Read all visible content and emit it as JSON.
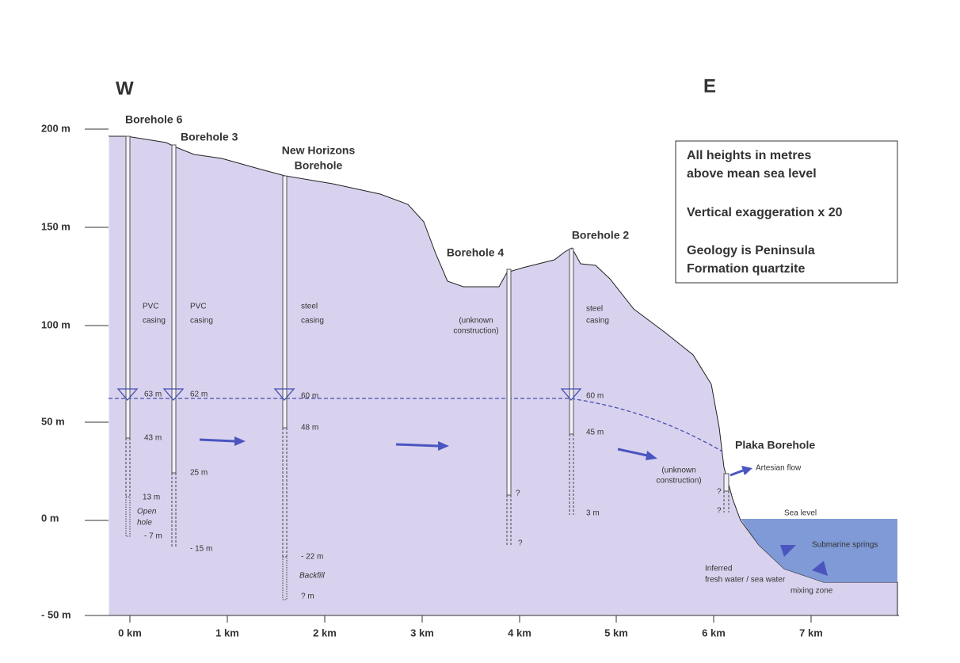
{
  "directions": {
    "west": "W",
    "east": "E"
  },
  "y_axis": {
    "ticks": [
      "200 m",
      "150 m",
      "100 m",
      "50 m",
      "0 m",
      "- 50 m"
    ]
  },
  "x_axis": {
    "ticks": [
      "0 km",
      "1 km",
      "2 km",
      "3 km",
      "4 km",
      "5 km",
      "6 km",
      "7 km"
    ]
  },
  "note": {
    "lines": [
      "All heights in metres",
      "above mean sea level",
      "Vertical exaggeration x 20",
      "Geology is Peninsula",
      "Formation quartzite"
    ]
  },
  "boreholes": [
    {
      "name": [
        "Borehole 6"
      ],
      "construction": [
        "PVC",
        "casing"
      ],
      "labels": [
        "63 m",
        "43 m",
        "13 m",
        "- 7 m"
      ],
      "section": [
        "Open",
        "hole"
      ]
    },
    {
      "name": [
        "Borehole 3"
      ],
      "construction": [
        "PVC",
        "casing"
      ],
      "labels": [
        "62 m",
        "25 m",
        "- 15 m"
      ]
    },
    {
      "name": [
        "New Horizons",
        "Borehole"
      ],
      "construction": [
        "steel",
        "casing"
      ],
      "labels": [
        "60 m",
        "48 m",
        "- 22 m",
        "? m"
      ],
      "section": [
        "Backfill"
      ]
    },
    {
      "name": [
        "Borehole 4"
      ],
      "construction": [
        "(unknown",
        "construction)"
      ],
      "labels": [
        "?",
        "?"
      ]
    },
    {
      "name": [
        "Borehole 2"
      ],
      "construction": [
        "steel",
        "casing"
      ],
      "labels": [
        "60 m",
        "45 m",
        "3 m"
      ]
    },
    {
      "name": [
        "Plaka Borehole"
      ],
      "construction": [
        "(unknown",
        "construction)"
      ],
      "labels": [
        "?",
        "?"
      ],
      "flow": "Artesian flow"
    }
  ],
  "sea": {
    "sea_level": "Sea level",
    "springs": "Submarine springs",
    "mixing_zone": [
      "Inferred",
      "fresh water / sea water",
      "mixing zone"
    ]
  }
}
